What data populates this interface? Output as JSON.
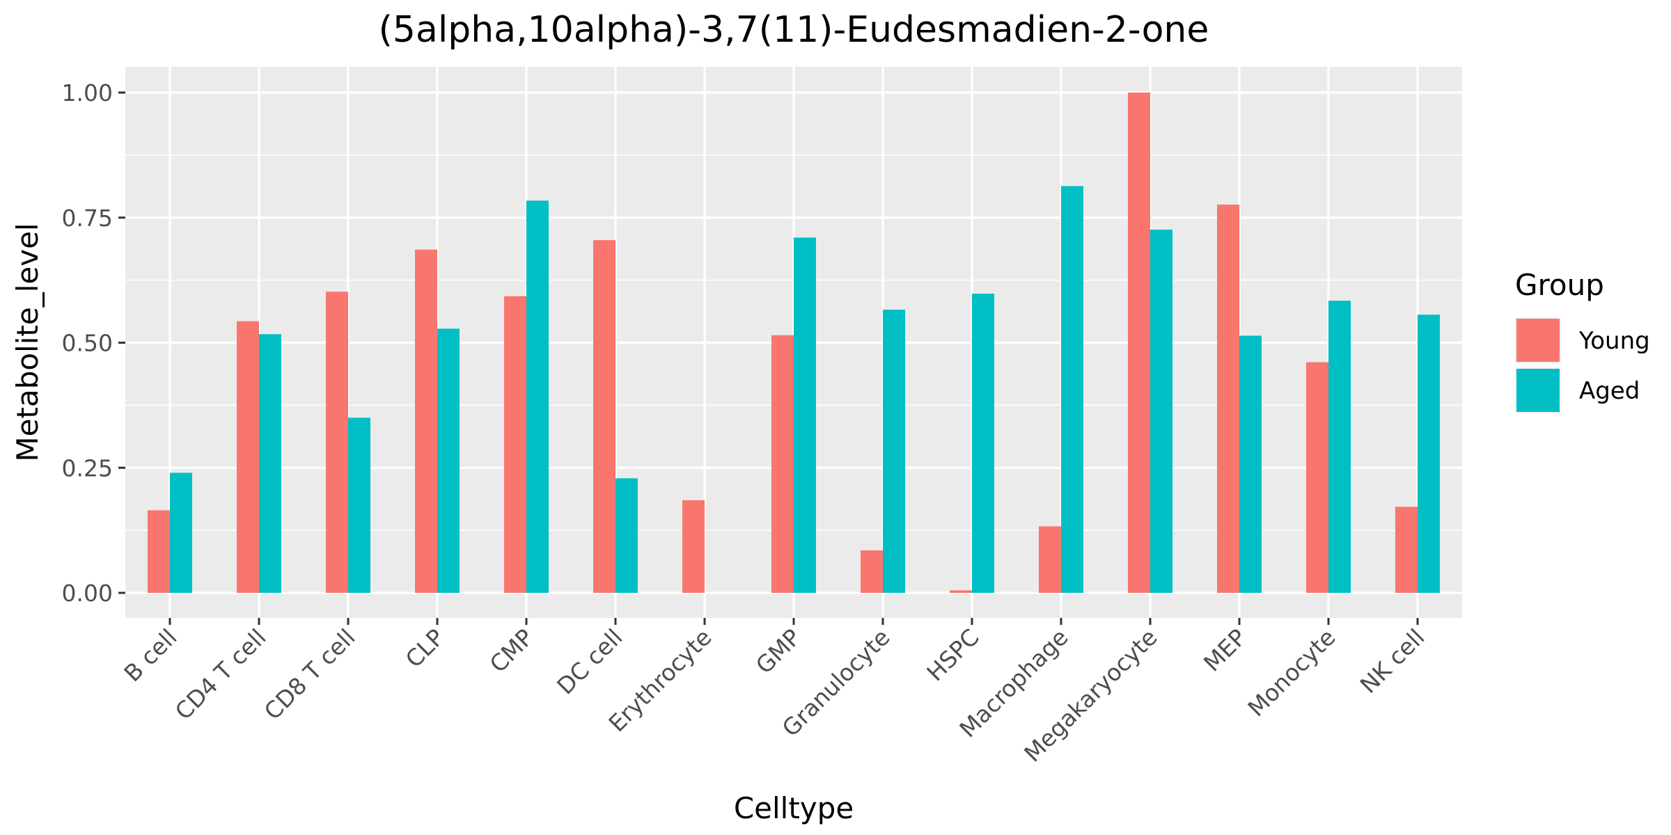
{
  "chart_data": {
    "type": "bar",
    "title": "(5alpha,10alpha)-3,7(11)-Eudesmadien-2-one",
    "xlabel": "Celltype",
    "ylabel": "Metabolite_level",
    "ylim": [
      0,
      1.05
    ],
    "yticks": [
      0.0,
      0.25,
      0.5,
      0.75,
      1.0
    ],
    "ytick_labels": [
      "0.00",
      "0.25",
      "0.50",
      "0.75",
      "1.00"
    ],
    "grid": true,
    "legend": {
      "title": "Group",
      "position": "right"
    },
    "categories": [
      "B cell",
      "CD4 T cell",
      "CD8 T cell",
      "CLP",
      "CMP",
      "DC cell",
      "Erythrocyte",
      "GMP",
      "Granulocyte",
      "HSPC",
      "Macrophage",
      "Megakaryocyte",
      "MEP",
      "Monocyte",
      "NK cell"
    ],
    "series": [
      {
        "name": "Young",
        "color": "#F8766D",
        "values": [
          0.165,
          0.543,
          0.602,
          0.686,
          0.593,
          0.705,
          0.185,
          0.515,
          0.085,
          0.005,
          0.133,
          1.0,
          0.776,
          0.461,
          0.172
        ]
      },
      {
        "name": "Aged",
        "color": "#00BFC4",
        "values": [
          0.24,
          0.517,
          0.35,
          0.528,
          0.784,
          0.229,
          0.0,
          0.71,
          0.566,
          0.598,
          0.813,
          0.726,
          0.514,
          0.584,
          0.556
        ]
      }
    ],
    "colors": {
      "panel_background": "#EBEBEB",
      "grid": "#FFFFFF",
      "tick_text": "#4D4D4D"
    }
  }
}
